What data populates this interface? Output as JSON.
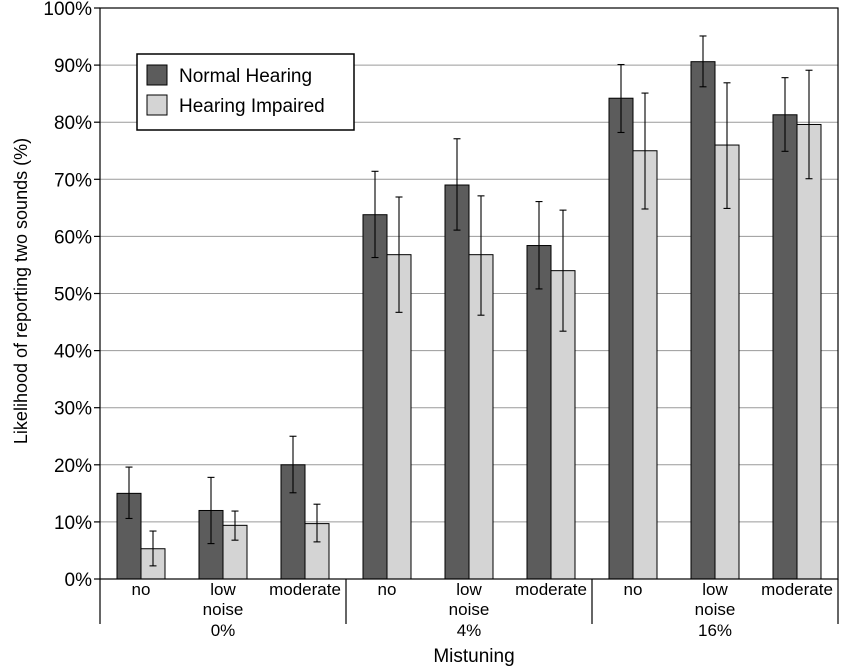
{
  "chart_data": {
    "type": "bar",
    "ylabel": "Likelihood of reporting two sounds (%)",
    "xlabel": "Mistuning",
    "ylim": [
      0,
      100
    ],
    "ytick_step": 10,
    "ytick_suffix": "%",
    "grid": true,
    "legend_position": "top-left",
    "groups": [
      {
        "label": "0%",
        "categories": [
          [
            "no"
          ],
          [
            "low",
            "noise"
          ],
          [
            "moderate"
          ]
        ]
      },
      {
        "label": "4%",
        "categories": [
          [
            "no"
          ],
          [
            "low",
            "noise"
          ],
          [
            "moderate"
          ]
        ]
      },
      {
        "label": "16%",
        "categories": [
          [
            "no"
          ],
          [
            "low",
            "noise"
          ],
          [
            "moderate"
          ]
        ]
      }
    ],
    "series": [
      {
        "name": "Normal Hearing",
        "color": "#5c5c5c",
        "values": [
          15.0,
          12.0,
          20.0,
          63.8,
          69.0,
          58.4,
          84.2,
          90.6,
          81.3
        ],
        "err_low": [
          10.6,
          6.2,
          15.1,
          56.3,
          61.1,
          50.8,
          78.2,
          86.2,
          74.9
        ],
        "err_high": [
          19.6,
          17.8,
          25.0,
          71.4,
          77.1,
          66.1,
          90.1,
          95.1,
          87.8
        ]
      },
      {
        "name": "Hearing Impaired",
        "color": "#d4d4d4",
        "values": [
          5.3,
          9.4,
          9.7,
          56.8,
          56.8,
          54.0,
          75.0,
          76.0,
          79.6
        ],
        "err_low": [
          2.3,
          6.8,
          6.5,
          46.7,
          46.2,
          43.4,
          64.8,
          64.9,
          70.1
        ],
        "err_high": [
          8.4,
          11.9,
          13.1,
          66.9,
          67.1,
          64.6,
          85.1,
          86.9,
          89.1
        ]
      }
    ]
  }
}
